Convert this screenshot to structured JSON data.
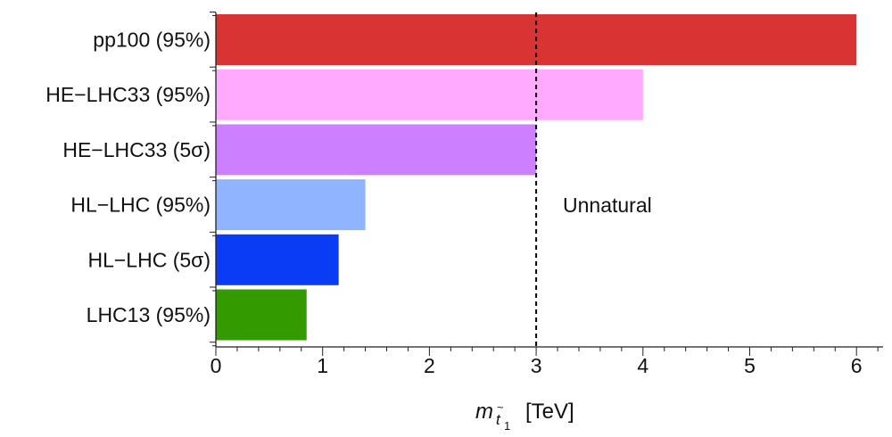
{
  "chart_data": {
    "type": "bar",
    "orientation": "horizontal",
    "categories": [
      "pp100 (95%)",
      "HE−LHC33 (95%)",
      "HE−LHC33 (5σ)",
      "HL−LHC (95%)",
      "HL−LHC (5σ)",
      "LHC13 (95%)"
    ],
    "values": [
      6.0,
      4.0,
      3.0,
      1.4,
      1.15,
      0.85
    ],
    "colors": [
      "#d93434",
      "#ffaaff",
      "#cc80ff",
      "#90b4ff",
      "#0a3cf6",
      "#339a00"
    ],
    "xlim": [
      0,
      6.4
    ],
    "xticks": [
      "0",
      "1",
      "2",
      "3",
      "4",
      "5",
      "6"
    ],
    "xlabel": {
      "symbol": "m",
      "subscript_base": "t",
      "subscript_accent": "~",
      "subscript_index": "1",
      "unit": "[TeV]"
    },
    "reference_line": {
      "x": 3,
      "style": "dashed",
      "color": "#000000"
    },
    "annotations": [
      {
        "text": "Unnatural",
        "x": 3.25,
        "y_category_index": 3.4
      }
    ],
    "grid": false,
    "legend": "none"
  }
}
